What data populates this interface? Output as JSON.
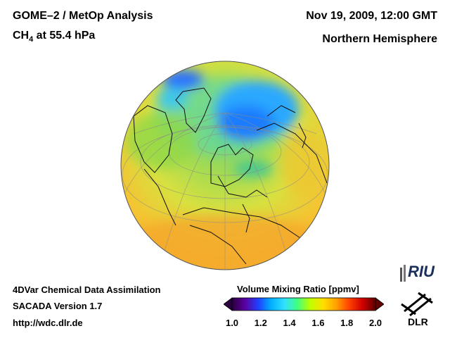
{
  "header": {
    "title": "GOME–2 / MetOp Analysis",
    "species_main": "CH",
    "species_sub": "4",
    "species_rest": " at 55.4 hPa",
    "date": "Nov 19, 2009, 12:00 GMT",
    "region": "Northern Hemisphere"
  },
  "footer": {
    "line1": "4DVar Chemical Data Assimilation",
    "line2": "SACADA Version 1.7",
    "line3": "http://wdc.dlr.de"
  },
  "colorbar": {
    "title": "Volume Mixing Ratio [ppmv]",
    "ticks": [
      "1.0",
      "1.2",
      "1.4",
      "1.6",
      "1.8",
      "2.0"
    ],
    "min": 1.0,
    "max": 2.0,
    "colors": [
      "#2a0040",
      "#5a00a0",
      "#2040ff",
      "#00b0ff",
      "#30e0ff",
      "#40ff80",
      "#c0ff00",
      "#ffe000",
      "#ffa000",
      "#ff4000",
      "#d00000",
      "#600000"
    ]
  },
  "logos": {
    "riu": "RIU",
    "dlr": "DLR"
  },
  "map": {
    "projection": "orthographic",
    "region": "Northern Hemisphere",
    "low_value_color": "#1a7fff",
    "background_color": "#f2c230"
  }
}
